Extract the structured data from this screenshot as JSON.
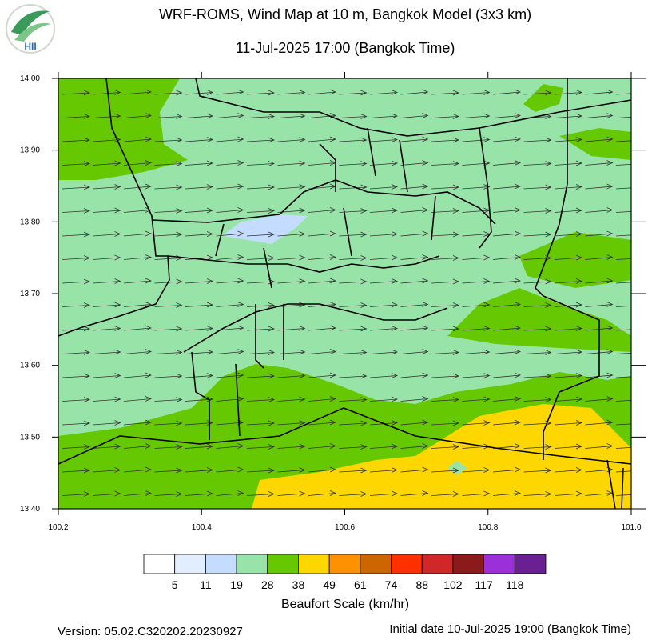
{
  "header": {
    "title": "WRF-ROMS, Wind Map at 10 m, Bangkok Model (3x3 km)",
    "subtitle": "11-Jul-2025 17:00 (Bangkok Time)"
  },
  "logo": {
    "text": "HII"
  },
  "map": {
    "xlim": [
      100.2,
      101.0
    ],
    "ylim": [
      13.4,
      14.0
    ],
    "xticks": [
      100.2,
      100.4,
      100.6,
      100.8,
      {
        "value": 101.0,
        "label": "101.0"
      }
    ],
    "yticks": [
      {
        "value": 13.4,
        "label": "13.40"
      },
      {
        "value": 13.5,
        "label": "13.50"
      },
      {
        "value": 13.6,
        "label": "13.60"
      },
      {
        "value": 13.7,
        "label": "13.70"
      },
      {
        "value": 13.8,
        "label": "13.80"
      },
      {
        "value": 13.9,
        "label": "13.90"
      },
      {
        "value": 14.0,
        "label": "14.00"
      }
    ]
  },
  "colorbar": {
    "title": "Beaufort Scale (km/hr)",
    "labels": [
      5,
      11,
      19,
      28,
      38,
      49,
      61,
      74,
      88,
      102,
      117,
      118
    ],
    "colors": [
      "#ffffff",
      "#e2eeff",
      "#c4dcff",
      "#98e4a8",
      "#66c800",
      "#ffd700",
      "#ff9000",
      "#cc6600",
      "#ff3000",
      "#d02828",
      "#8b1a1a",
      "#9b30d8",
      "#6a2090"
    ]
  },
  "footer": {
    "version": "Version: 05.02.C320202.20230927",
    "initial": "Initial date 10-Jul-2025 19:00 (Bangkok Time)"
  }
}
